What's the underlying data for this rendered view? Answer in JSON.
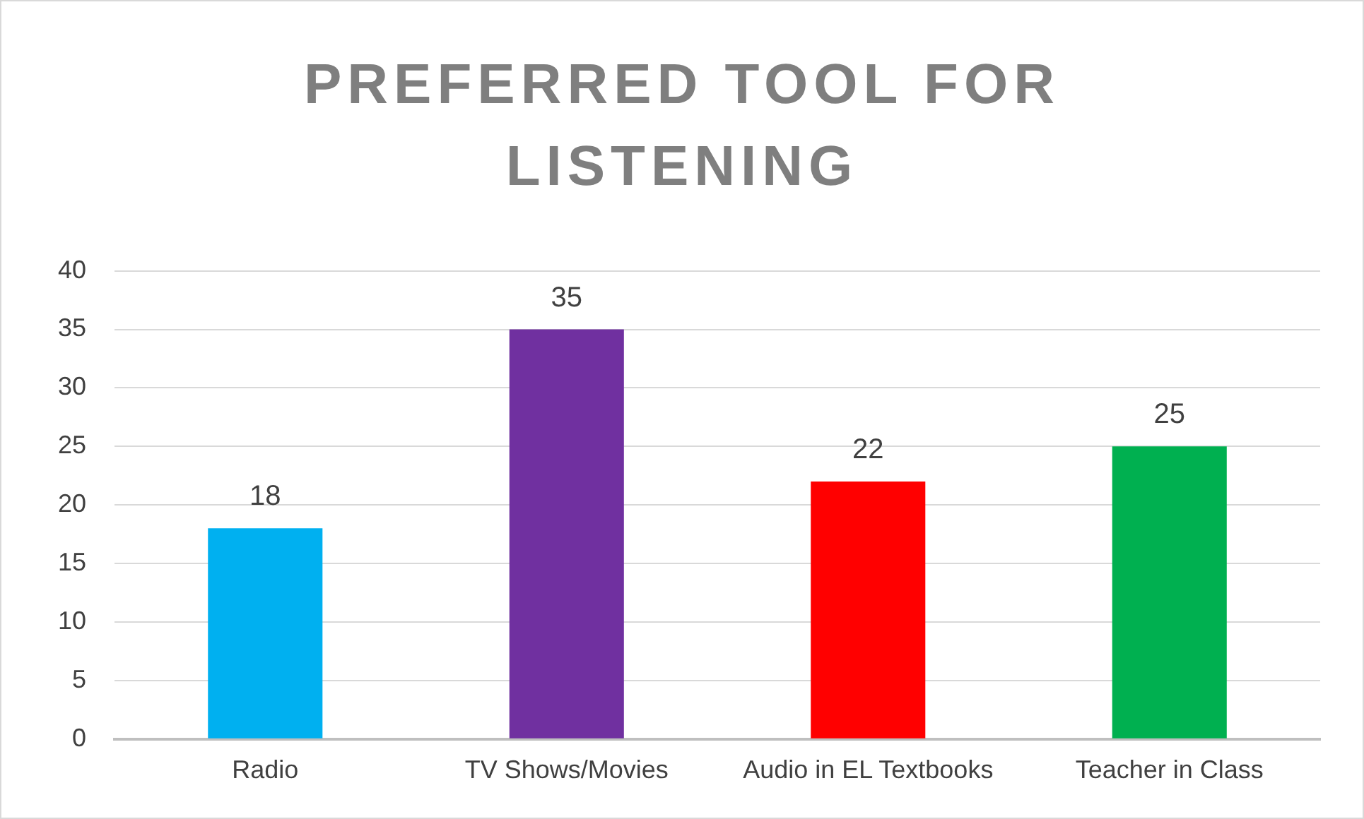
{
  "chart_data": {
    "type": "bar",
    "title": "PREFERRED TOOL FOR LISTENING",
    "categories": [
      "Radio",
      "TV Shows/Movies",
      "Audio in EL Textbooks",
      "Teacher in Class"
    ],
    "values": [
      18,
      35,
      22,
      25
    ],
    "colors": [
      "#00b0f0",
      "#7030a0",
      "#ff0000",
      "#00b050"
    ],
    "ylim": [
      0,
      40
    ],
    "yticks": [
      0,
      5,
      10,
      15,
      20,
      25,
      30,
      35,
      40
    ],
    "grid": "y",
    "legend": false,
    "data_labels": true
  }
}
